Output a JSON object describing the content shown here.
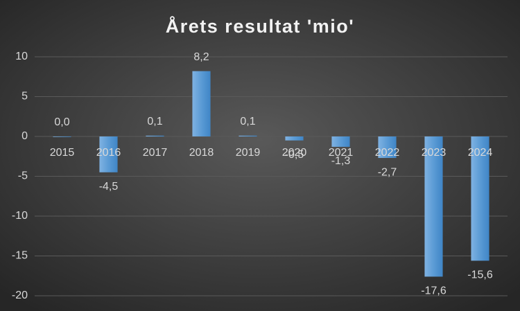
{
  "chart_data": {
    "type": "bar",
    "title": "Årets resultat 'mio'",
    "categories": [
      "2015",
      "2016",
      "2017",
      "2018",
      "2019",
      "2020",
      "2021",
      "2022",
      "2023",
      "2024"
    ],
    "values": [
      0.0,
      -4.5,
      0.1,
      8.2,
      0.1,
      -0.5,
      -1.3,
      -2.7,
      -17.6,
      -15.6
    ],
    "value_labels": [
      "0,0",
      "-4,5",
      "0,1",
      "8,2",
      "0,1",
      "-0,5",
      "-1,3",
      "-2,7",
      "-17,6",
      "-15,6"
    ],
    "color": "#5b9bd5",
    "ylim": [
      -20,
      10
    ],
    "yticks": [
      10,
      5,
      0,
      -5,
      -10,
      -15,
      -20
    ],
    "grid": true
  }
}
